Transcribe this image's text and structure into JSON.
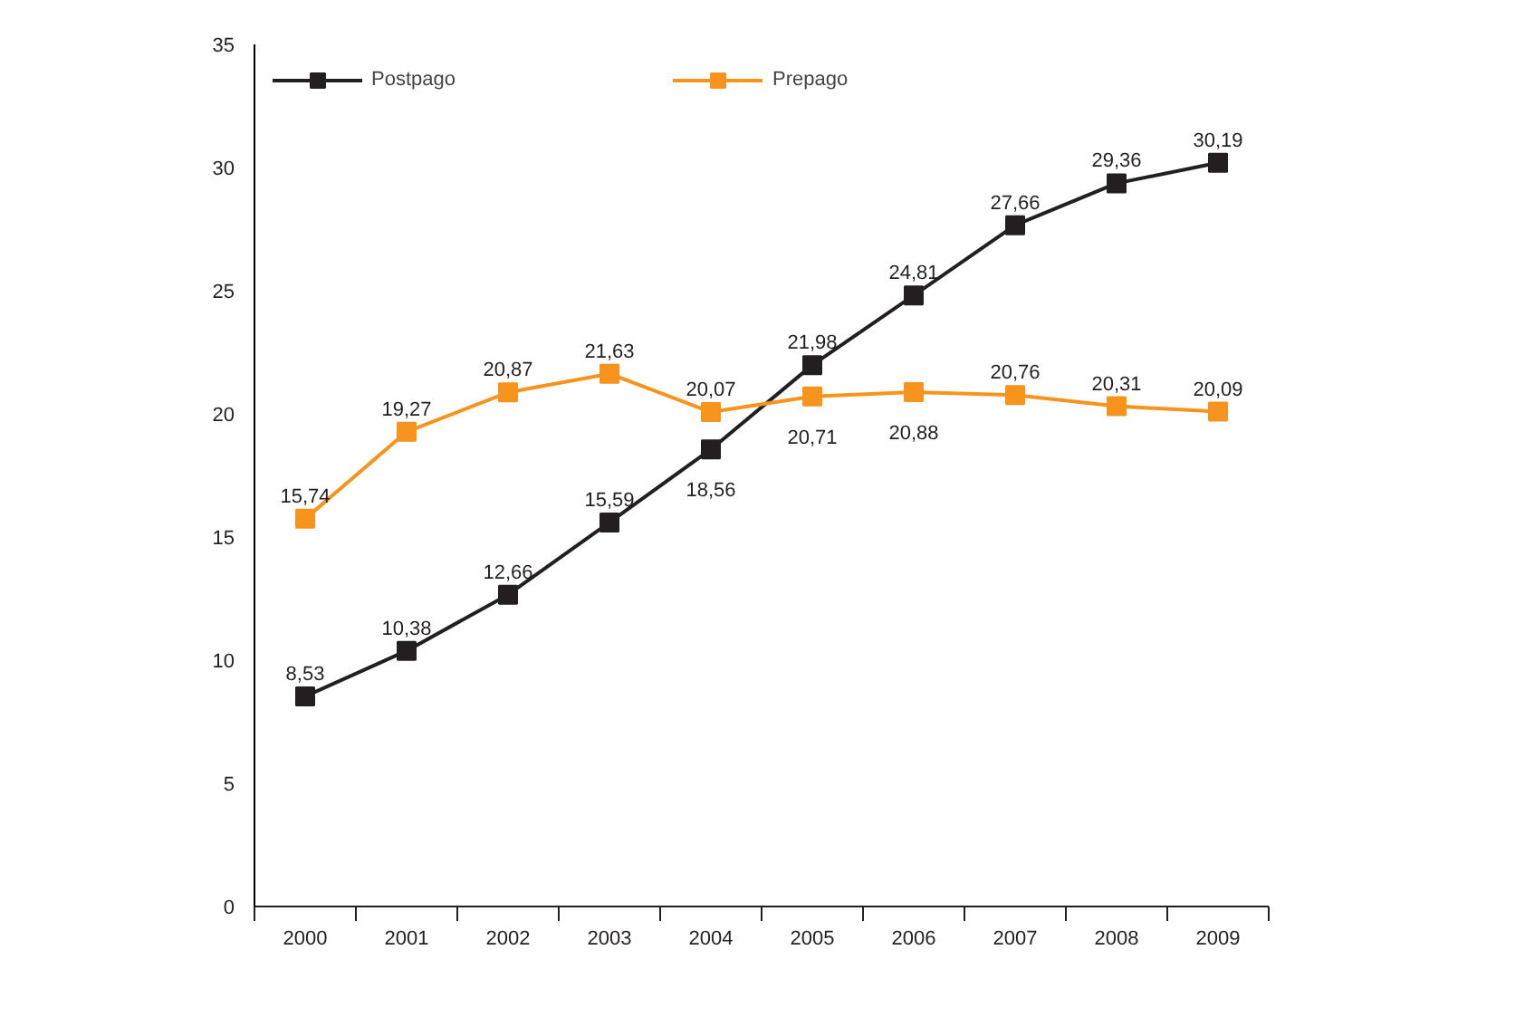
{
  "chart_data": {
    "type": "line",
    "categories": [
      "2000",
      "2001",
      "2002",
      "2003",
      "2004",
      "2005",
      "2006",
      "2007",
      "2008",
      "2009"
    ],
    "series": [
      {
        "name": "Postpago",
        "color": "#231f20",
        "values": [
          8.53,
          10.38,
          12.66,
          15.59,
          18.56,
          21.98,
          24.81,
          27.66,
          29.36,
          30.19
        ],
        "value_labels": [
          "8,53",
          "10,38",
          "12,66",
          "15,59",
          "18,56",
          "21,98",
          "24,81",
          "27,66",
          "29,36",
          "30,19"
        ]
      },
      {
        "name": "Prepago",
        "color": "#f7941d",
        "values": [
          15.74,
          19.27,
          20.87,
          21.63,
          20.07,
          20.71,
          20.88,
          20.76,
          20.31,
          20.09
        ],
        "value_labels": [
          "15,74",
          "19,27",
          "20,87",
          "21,63",
          "20,07",
          "20,71",
          "20,88",
          "20,76",
          "20,31",
          "20,09"
        ]
      }
    ],
    "ylim": [
      0,
      35
    ],
    "yticks": [
      0,
      5,
      10,
      15,
      20,
      25,
      30,
      35
    ],
    "grid": false,
    "legend": "top",
    "marker": "square",
    "line_style": "solid"
  }
}
